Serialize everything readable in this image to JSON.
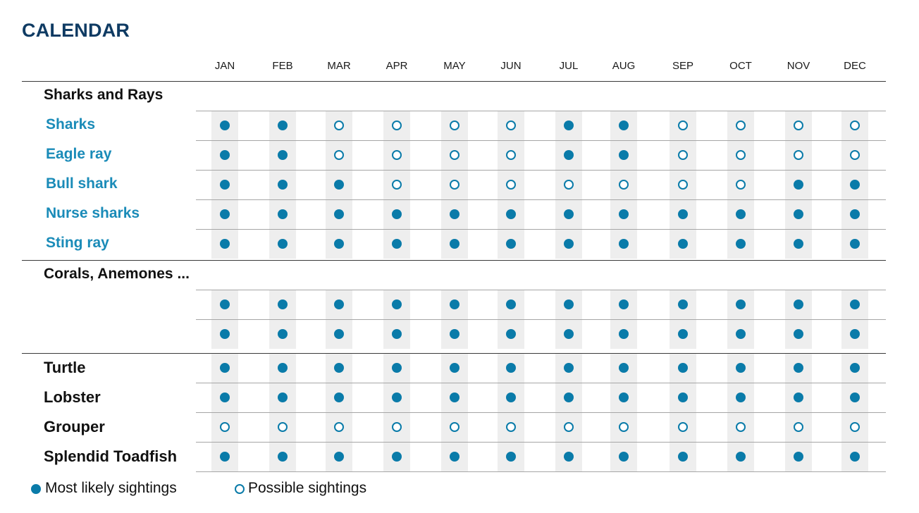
{
  "title": "CALENDAR",
  "months": [
    "JAN",
    "FEB",
    "MAR",
    "APR",
    "MAY",
    "JUN",
    "JUL",
    "AUG",
    "SEP",
    "OCT",
    "NOV",
    "DEC"
  ],
  "sections": [
    {
      "name": "Sharks and Rays",
      "rows": [
        {
          "label": "Sharks",
          "status": [
            "L",
            "L",
            "P",
            "P",
            "P",
            "P",
            "L",
            "L",
            "P",
            "P",
            "P",
            "P"
          ]
        },
        {
          "label": "Eagle ray",
          "status": [
            "L",
            "L",
            "P",
            "P",
            "P",
            "P",
            "L",
            "L",
            "P",
            "P",
            "P",
            "P"
          ]
        },
        {
          "label": "Bull shark",
          "status": [
            "L",
            "L",
            "L",
            "P",
            "P",
            "P",
            "P",
            "P",
            "P",
            "P",
            "L",
            "L"
          ]
        },
        {
          "label": "Nurse sharks",
          "status": [
            "L",
            "L",
            "L",
            "L",
            "L",
            "L",
            "L",
            "L",
            "L",
            "L",
            "L",
            "L"
          ]
        },
        {
          "label": "Sting ray",
          "status": [
            "L",
            "L",
            "L",
            "L",
            "L",
            "L",
            "L",
            "L",
            "L",
            "L",
            "L",
            "L"
          ]
        }
      ]
    },
    {
      "name": "Corals, Anemones ...",
      "rows": [
        {
          "label": "",
          "status": [
            "L",
            "L",
            "L",
            "L",
            "L",
            "L",
            "L",
            "L",
            "L",
            "L",
            "L",
            "L"
          ]
        },
        {
          "label": "",
          "status": [
            "L",
            "L",
            "L",
            "L",
            "L",
            "L",
            "L",
            "L",
            "L",
            "L",
            "L",
            "L"
          ]
        }
      ]
    },
    {
      "name": "",
      "rows": [
        {
          "label": "Turtle",
          "status": [
            "L",
            "L",
            "L",
            "L",
            "L",
            "L",
            "L",
            "L",
            "L",
            "L",
            "L",
            "L"
          ]
        },
        {
          "label": "Lobster",
          "status": [
            "L",
            "L",
            "L",
            "L",
            "L",
            "L",
            "L",
            "L",
            "L",
            "L",
            "L",
            "L"
          ]
        },
        {
          "label": "Grouper",
          "status": [
            "P",
            "P",
            "P",
            "P",
            "P",
            "P",
            "P",
            "P",
            "P",
            "P",
            "P",
            "P"
          ]
        },
        {
          "label": "Splendid Toadfish",
          "status": [
            "L",
            "L",
            "L",
            "L",
            "L",
            "L",
            "L",
            "L",
            "L",
            "L",
            "L",
            "L"
          ]
        }
      ]
    }
  ],
  "legend": {
    "likely": "Most likely sightings",
    "possible": "Possible sightings"
  },
  "colors": {
    "accent": "#0a7ba9",
    "title": "#0f3b63",
    "species_label": "#1a8bb8",
    "stripe": "#eeeeee"
  }
}
